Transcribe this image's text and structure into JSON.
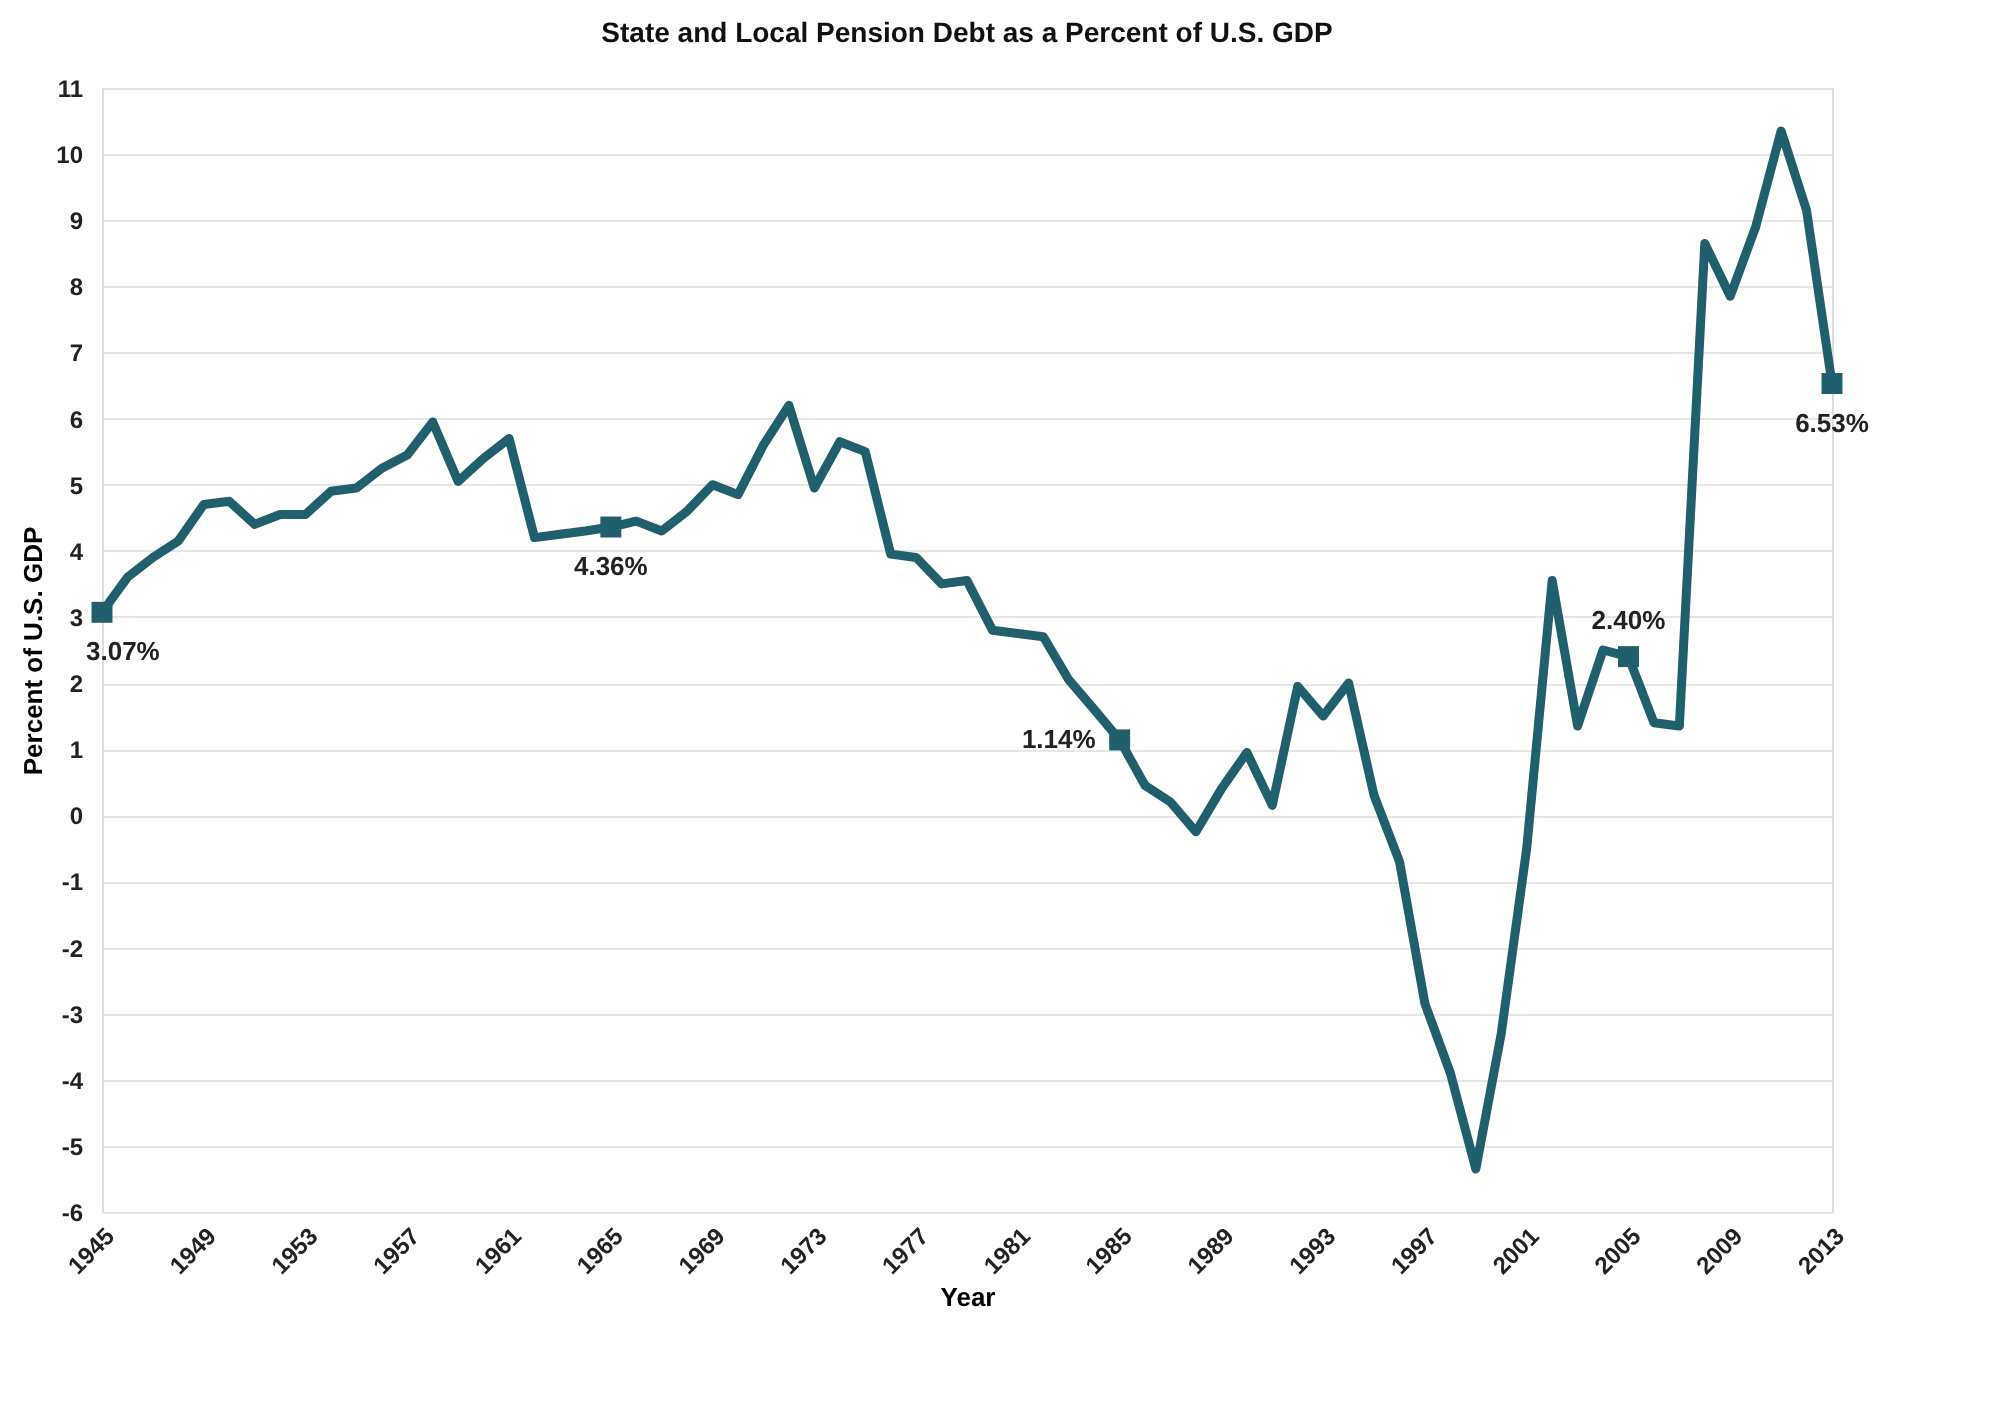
{
  "chart_data": {
    "type": "line",
    "title": "State and Local Pension Debt as a Percent of U.S. GDP",
    "xlabel": "Year",
    "ylabel": "Percent of  U.S. GDP",
    "x": [
      1945,
      1946,
      1947,
      1948,
      1949,
      1950,
      1951,
      1952,
      1953,
      1954,
      1955,
      1956,
      1957,
      1958,
      1959,
      1960,
      1961,
      1962,
      1963,
      1964,
      1965,
      1966,
      1967,
      1968,
      1969,
      1970,
      1971,
      1972,
      1973,
      1974,
      1975,
      1976,
      1977,
      1978,
      1979,
      1980,
      1981,
      1982,
      1983,
      1984,
      1985,
      1986,
      1987,
      1988,
      1989,
      1990,
      1991,
      1992,
      1993,
      1994,
      1995,
      1996,
      1997,
      1998,
      1999,
      2000,
      2001,
      2002,
      2003,
      2004,
      2005,
      2006,
      2007,
      2008,
      2009,
      2010,
      2011,
      2012,
      2013
    ],
    "series": [
      {
        "color": "#1f5f6e",
        "values": [
          3.07,
          3.6,
          3.9,
          4.15,
          4.7,
          4.75,
          4.4,
          4.55,
          4.55,
          4.9,
          4.95,
          5.25,
          5.45,
          5.95,
          5.05,
          5.4,
          5.7,
          4.2,
          4.25,
          4.3,
          4.36,
          4.45,
          4.3,
          4.6,
          5.0,
          4.85,
          5.6,
          6.2,
          4.95,
          5.65,
          5.5,
          3.95,
          3.9,
          3.5,
          3.55,
          2.8,
          2.75,
          2.7,
          2.05,
          1.6,
          1.14,
          0.45,
          0.2,
          -0.25,
          0.4,
          0.95,
          0.15,
          1.95,
          1.5,
          2.0,
          0.3,
          -0.7,
          -2.85,
          -3.9,
          -5.35,
          -3.3,
          -0.5,
          3.55,
          1.35,
          2.5,
          2.4,
          1.4,
          1.35,
          8.65,
          7.85,
          8.9,
          10.35,
          9.15,
          6.53
        ],
        "value_labels": [
          "3.07%",
          null,
          null,
          null,
          null,
          null,
          null,
          null,
          null,
          null,
          null,
          null,
          null,
          null,
          null,
          null,
          null,
          null,
          null,
          null,
          "4.36%",
          null,
          null,
          null,
          null,
          null,
          null,
          null,
          null,
          null,
          null,
          null,
          null,
          null,
          null,
          null,
          null,
          null,
          null,
          null,
          "1.14%",
          null,
          null,
          null,
          null,
          null,
          null,
          null,
          null,
          null,
          null,
          null,
          null,
          null,
          null,
          null,
          null,
          null,
          null,
          null,
          "2.40%",
          null,
          null,
          null,
          null,
          null,
          null,
          null,
          "6.53%"
        ]
      }
    ],
    "xlim": [
      1945,
      2013
    ],
    "xticks": [
      1945,
      1949,
      1953,
      1957,
      1961,
      1965,
      1969,
      1973,
      1977,
      1981,
      1985,
      1989,
      1993,
      1997,
      2001,
      2005,
      2009,
      2013
    ],
    "ylim": [
      -6,
      11
    ],
    "yticks": [
      -6,
      -5,
      -4,
      -3,
      -2,
      -1,
      0,
      1,
      2,
      3,
      4,
      5,
      6,
      7,
      8,
      9,
      10,
      11
    ],
    "grid": "y",
    "marker": "none",
    "line_style": "solid"
  }
}
